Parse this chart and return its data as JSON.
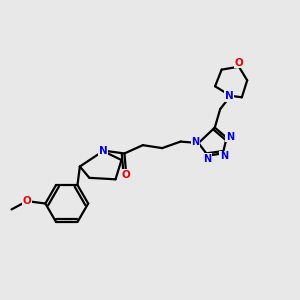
{
  "bg_color": "#e8e8e8",
  "atom_color_N": "#0000ee",
  "atom_color_O": "#ee0000",
  "atom_color_C": "#000000",
  "bond_color": "#000000",
  "linewidth": 1.6,
  "figsize": [
    3.0,
    3.0
  ],
  "dpi": 100,
  "xlim": [
    0,
    10
  ],
  "ylim": [
    0,
    10
  ]
}
